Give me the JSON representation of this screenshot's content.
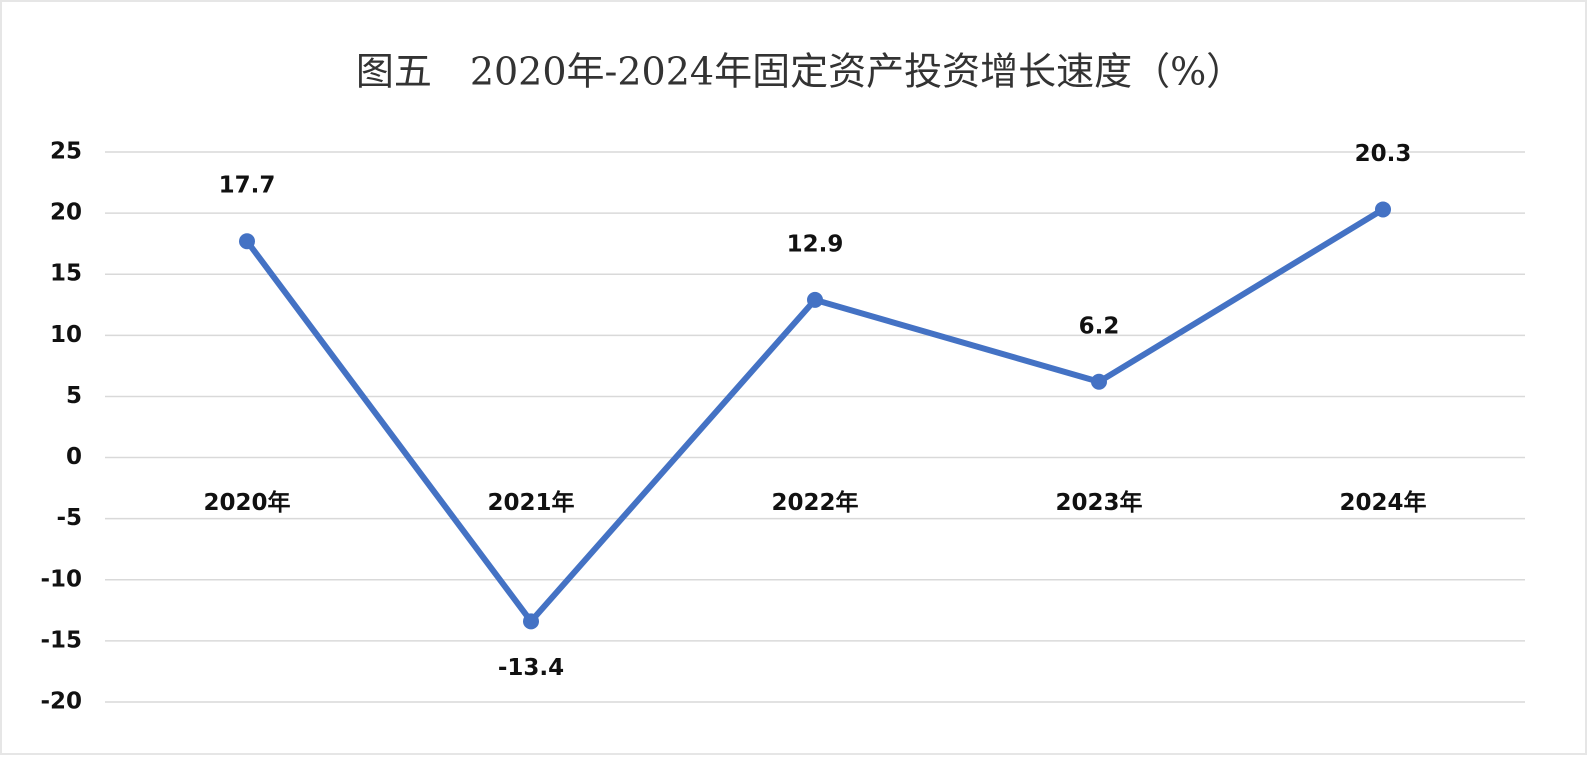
{
  "chart_data": {
    "type": "line",
    "title": "图五　2020年-2024年固定资产投资增长速度（%）",
    "categories": [
      "2020年",
      "2021年",
      "2022年",
      "2023年",
      "2024年"
    ],
    "values": [
      17.7,
      -13.4,
      12.9,
      6.2,
      20.3
    ],
    "color": "#4472c4",
    "ylim": [
      -20,
      25
    ],
    "yticks": [
      -20,
      -15,
      -10,
      -5,
      0,
      5,
      10,
      15,
      20,
      25
    ],
    "grid": true
  }
}
